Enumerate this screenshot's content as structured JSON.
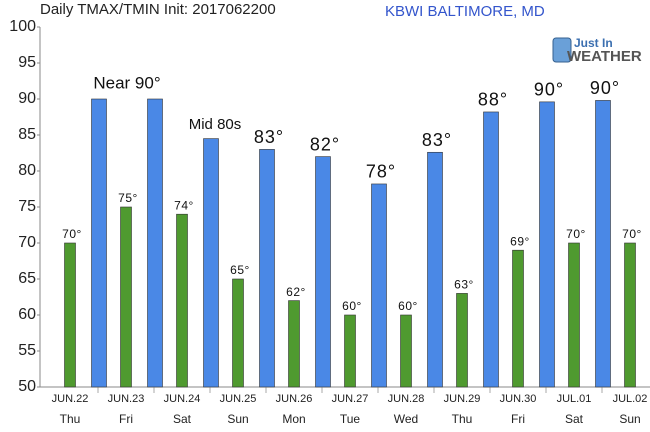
{
  "chart_data": {
    "type": "bar",
    "title": "Daily TMAX/TMIN Init: 2017062200",
    "subtitle": "KBWI BALTIMORE, MD",
    "logo": {
      "line1": "Just In",
      "line2": "WEATHER"
    },
    "categories": [
      "JUN.22",
      "JUN.23",
      "JUN.24",
      "JUN.25",
      "JUN.26",
      "JUN.27",
      "JUN.28",
      "JUN.29",
      "JUN.30",
      "JUL.01",
      "JUL.02"
    ],
    "weekdays": [
      "Thu",
      "Fri",
      "Sat",
      "Sun",
      "Mon",
      "Tue",
      "Wed",
      "Thu",
      "Fri",
      "Sat",
      "Sun"
    ],
    "series": [
      {
        "name": "TMIN",
        "color": "#4f9a2f",
        "values": [
          70,
          75,
          74,
          65,
          62,
          60,
          60,
          63,
          69,
          70,
          70
        ],
        "value_labels": [
          "70°",
          "75°",
          "74°",
          "65°",
          "62°",
          "60°",
          "60°",
          "63°",
          "69°",
          "70°",
          "70°"
        ]
      },
      {
        "name": "TMAX",
        "color": "#4a88e6",
        "values": [
          90,
          90,
          84.5,
          83,
          82,
          78.2,
          82.6,
          88.2,
          89.6,
          89.8,
          null
        ],
        "value_labels": [
          null,
          null,
          null,
          "83°",
          "82°",
          "78°",
          "83°",
          "88°",
          "90°",
          "90°",
          null
        ]
      }
    ],
    "annotations": [
      {
        "text": "Near 90°",
        "category": 0
      },
      {
        "text": "Mid 80s",
        "category": 2
      }
    ],
    "ylim": [
      50,
      100
    ],
    "yticks": [
      50,
      55,
      60,
      65,
      70,
      75,
      80,
      85,
      90,
      95,
      100
    ]
  }
}
